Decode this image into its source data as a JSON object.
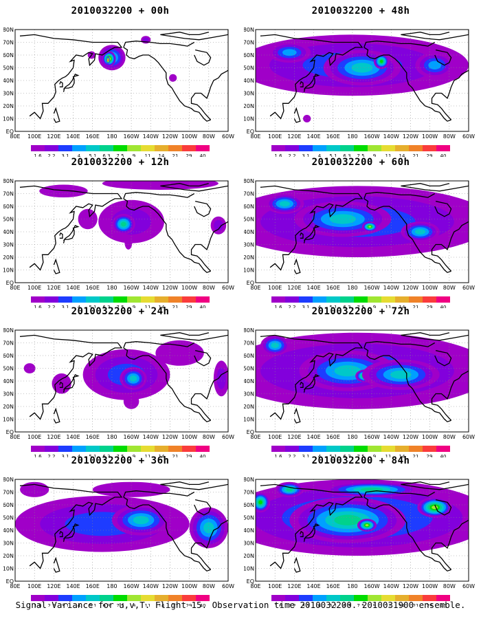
{
  "figure": {
    "caption": "Signal Variance for u,v,T. Flight 15. Observation time 2010032200. 2010031900 ensemble."
  },
  "colorbar": {
    "levels": [
      "1.6",
      "2.2",
      "3.1",
      "4",
      "5.1",
      "6.3",
      "7.5",
      "9",
      "11",
      "14",
      "21",
      "29",
      "40"
    ],
    "colors": [
      "#a000c8",
      "#8200dc",
      "#1e3cff",
      "#00a0ff",
      "#00c8c8",
      "#00d28c",
      "#00dc00",
      "#a0e632",
      "#e6dc32",
      "#e6af2d",
      "#f08228",
      "#fa3c3c",
      "#f00082"
    ]
  },
  "axes": {
    "lon_ticks": [
      "80E",
      "100E",
      "120E",
      "140E",
      "160E",
      "180",
      "160W",
      "140W",
      "120W",
      "100W",
      "80W",
      "60W"
    ],
    "lat_ticks": [
      "80N",
      "70N",
      "60N",
      "50N",
      "40N",
      "30N",
      "20N",
      "10N",
      "EQ"
    ]
  },
  "chart_data": [
    {
      "type": "heatmap",
      "title": "2010032200 + 00h",
      "lead_hours": 0,
      "field": "signal variance u,v,T",
      "xlim": [
        "80E",
        "60W"
      ],
      "ylim": [
        "EQ",
        "80N"
      ],
      "blobs": [
        {
          "lon": 180,
          "lat": 58,
          "rx": 14,
          "ry": 10,
          "level": 4
        },
        {
          "lon": 177,
          "lat": 57,
          "rx": 7,
          "ry": 6,
          "level": 8
        },
        {
          "lon": 176,
          "lat": 56,
          "rx": 2,
          "ry": 3,
          "level": 12
        },
        {
          "lon": -117,
          "lat": 42,
          "rx": 4,
          "ry": 3,
          "level": 0
        },
        {
          "lon": 159,
          "lat": 60,
          "rx": 4,
          "ry": 3,
          "level": 0
        },
        {
          "lon": -145,
          "lat": 72,
          "rx": 5,
          "ry": 3,
          "level": 1
        }
      ]
    },
    {
      "type": "heatmap",
      "title": "2010032200 + 12h",
      "lead_hours": 12,
      "field": "signal variance u,v,T",
      "xlim": [
        "80E",
        "60W"
      ],
      "ylim": [
        "EQ",
        "80N"
      ],
      "blobs": [
        {
          "lon": -160,
          "lat": 48,
          "rx": 34,
          "ry": 17,
          "level": 1
        },
        {
          "lon": -168,
          "lat": 46,
          "rx": 12,
          "ry": 8,
          "level": 5
        },
        {
          "lon": -130,
          "lat": 78,
          "rx": 60,
          "ry": 5,
          "level": 0
        },
        {
          "lon": -70,
          "lat": 45,
          "rx": 8,
          "ry": 7,
          "level": 1
        },
        {
          "lon": 155,
          "lat": 50,
          "rx": 10,
          "ry": 8,
          "level": 0
        },
        {
          "lon": -163,
          "lat": 32,
          "rx": 4,
          "ry": 6,
          "level": 0
        },
        {
          "lon": 130,
          "lat": 72,
          "rx": 25,
          "ry": 5,
          "level": 0
        }
      ]
    },
    {
      "type": "heatmap",
      "title": "2010032200 + 24h",
      "lead_hours": 24,
      "field": "signal variance u,v,T",
      "xlim": [
        "80E",
        "60W"
      ],
      "ylim": [
        "EQ",
        "80N"
      ],
      "blobs": [
        {
          "lon": -165,
          "lat": 45,
          "rx": 45,
          "ry": 20,
          "level": 2
        },
        {
          "lon": -158,
          "lat": 42,
          "rx": 14,
          "ry": 9,
          "level": 4
        },
        {
          "lon": -110,
          "lat": 62,
          "rx": 25,
          "ry": 10,
          "level": 0
        },
        {
          "lon": -67,
          "lat": 42,
          "rx": 8,
          "ry": 14,
          "level": 1
        },
        {
          "lon": 128,
          "lat": 38,
          "rx": 10,
          "ry": 8,
          "level": 0
        },
        {
          "lon": -160,
          "lat": 24,
          "rx": 8,
          "ry": 6,
          "level": 0
        },
        {
          "lon": 95,
          "lat": 50,
          "rx": 6,
          "ry": 4,
          "level": 0
        }
      ]
    },
    {
      "type": "heatmap",
      "title": "2010032200 + 36h",
      "lead_hours": 36,
      "field": "signal variance u,v,T",
      "xlim": [
        "80E",
        "60W"
      ],
      "ylim": [
        "EQ",
        "80N"
      ],
      "blobs": [
        {
          "lon": 170,
          "lat": 45,
          "rx": 90,
          "ry": 22,
          "level": 2
        },
        {
          "lon": -150,
          "lat": 48,
          "rx": 30,
          "ry": 12,
          "level": 4
        },
        {
          "lon": -80,
          "lat": 42,
          "rx": 20,
          "ry": 16,
          "level": 4
        },
        {
          "lon": 100,
          "lat": 72,
          "rx": 15,
          "ry": 6,
          "level": 0
        },
        {
          "lon": -160,
          "lat": 72,
          "rx": 40,
          "ry": 6,
          "level": 0
        }
      ]
    },
    {
      "type": "heatmap",
      "title": "2010032200 + 48h",
      "lead_hours": 48,
      "field": "signal variance u,v,T",
      "xlim": [
        "80E",
        "60W"
      ],
      "ylim": [
        "EQ",
        "80N"
      ],
      "blobs": [
        {
          "lon": 180,
          "lat": 52,
          "rx": 120,
          "ry": 24,
          "level": 2
        },
        {
          "lon": -170,
          "lat": 50,
          "rx": 40,
          "ry": 14,
          "level": 4
        },
        {
          "lon": -150,
          "lat": 55,
          "rx": 8,
          "ry": 6,
          "level": 6
        },
        {
          "lon": 115,
          "lat": 62,
          "rx": 22,
          "ry": 8,
          "level": 3
        },
        {
          "lon": -95,
          "lat": 52,
          "rx": 20,
          "ry": 10,
          "level": 3
        },
        {
          "lon": 133,
          "lat": 10,
          "rx": 4,
          "ry": 3,
          "level": 0
        }
      ]
    },
    {
      "type": "heatmap",
      "title": "2010032200 + 60h",
      "lead_hours": 60,
      "field": "signal variance u,v,T",
      "xlim": [
        "80E",
        "60W"
      ],
      "ylim": [
        "EQ",
        "80N"
      ],
      "blobs": [
        {
          "lon": -175,
          "lat": 48,
          "rx": 140,
          "ry": 28,
          "level": 2
        },
        {
          "lon": 170,
          "lat": 50,
          "rx": 50,
          "ry": 14,
          "level": 4
        },
        {
          "lon": -162,
          "lat": 44,
          "rx": 8,
          "ry": 4,
          "level": 7
        },
        {
          "lon": -110,
          "lat": 40,
          "rx": 20,
          "ry": 8,
          "level": 4
        },
        {
          "lon": 110,
          "lat": 62,
          "rx": 20,
          "ry": 8,
          "level": 4
        }
      ]
    },
    {
      "type": "heatmap",
      "title": "2010032200 + 72h",
      "lead_hours": 72,
      "field": "signal variance u,v,T",
      "xlim": [
        "80E",
        "60W"
      ],
      "ylim": [
        "EQ",
        "80N"
      ],
      "blobs": [
        {
          "lon": -175,
          "lat": 48,
          "rx": 140,
          "ry": 30,
          "level": 2
        },
        {
          "lon": 175,
          "lat": 48,
          "rx": 50,
          "ry": 16,
          "level": 4
        },
        {
          "lon": -167,
          "lat": 44,
          "rx": 10,
          "ry": 5,
          "level": 7
        },
        {
          "lon": -130,
          "lat": 45,
          "rx": 40,
          "ry": 12,
          "level": 4
        },
        {
          "lon": 100,
          "lat": 68,
          "rx": 15,
          "ry": 8,
          "level": 4
        }
      ]
    },
    {
      "type": "heatmap",
      "title": "2010032200 + 84h",
      "lead_hours": 84,
      "field": "signal variance u,v,T",
      "xlim": [
        "80E",
        "60W"
      ],
      "ylim": [
        "EQ",
        "80N"
      ],
      "blobs": [
        {
          "lon": -175,
          "lat": 50,
          "rx": 140,
          "ry": 30,
          "level": 3
        },
        {
          "lon": 175,
          "lat": 48,
          "rx": 60,
          "ry": 18,
          "level": 5
        },
        {
          "lon": -165,
          "lat": 44,
          "rx": 10,
          "ry": 5,
          "level": 7
        },
        {
          "lon": -95,
          "lat": 58,
          "rx": 18,
          "ry": 8,
          "level": 7
        },
        {
          "lon": 85,
          "lat": 62,
          "rx": 10,
          "ry": 8,
          "level": 6
        },
        {
          "lon": -160,
          "lat": 72,
          "rx": 50,
          "ry": 6,
          "level": 5
        },
        {
          "lon": 115,
          "lat": 72,
          "rx": 15,
          "ry": 6,
          "level": 5
        }
      ]
    }
  ]
}
